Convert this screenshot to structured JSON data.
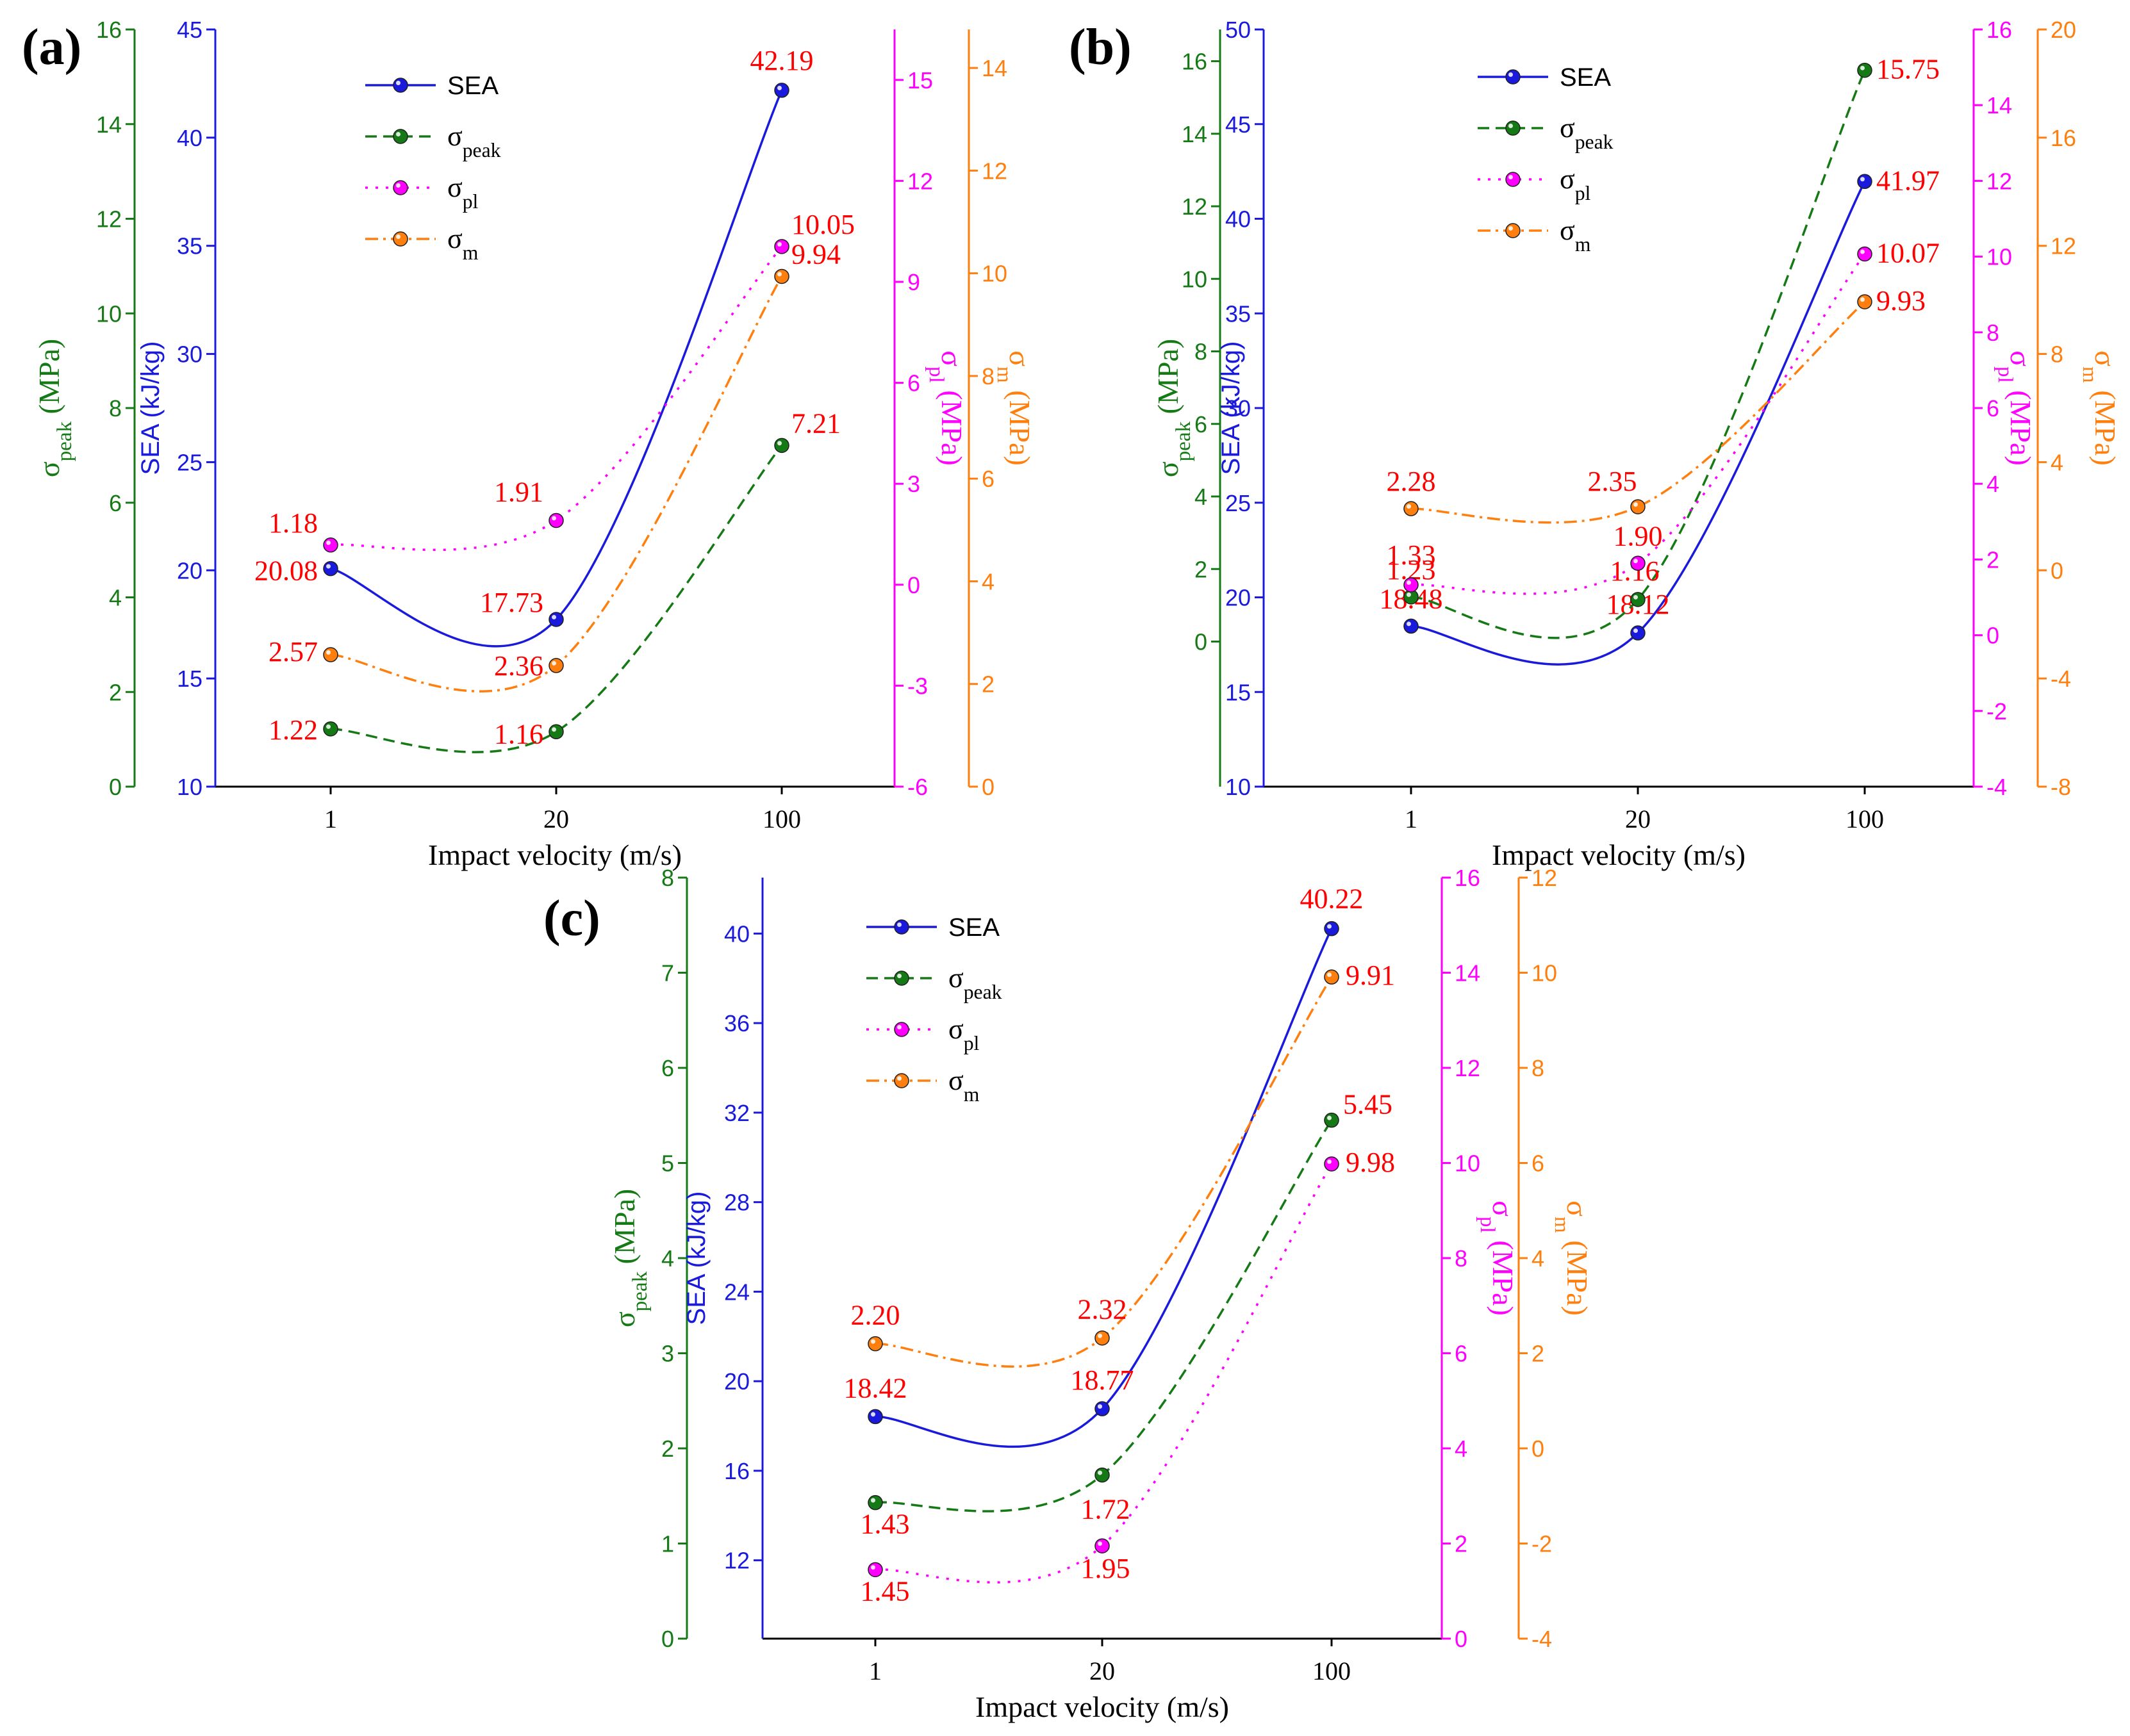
{
  "figure": {
    "panels": [
      "(a)",
      "(b)",
      "(c)"
    ]
  },
  "colors": {
    "sea": "#1a1adc",
    "peak": "#157a15",
    "pl": "#ff00ff",
    "m": "#ff7f0e",
    "label": "#ff0000",
    "axis": "#000000"
  },
  "legend": {
    "sea": "SEA",
    "peak_base": "σ",
    "peak_sub": "peak",
    "pl_base": "σ",
    "pl_sub": "pl",
    "m_base": "σ",
    "m_sub": "m"
  },
  "axis_titles": {
    "x": "Impact velocity (m/s)",
    "peak_base": "σ",
    "peak_sub": "peak",
    "peak_unit": "(MPa)",
    "sea": "SEA (kJ/kg)",
    "pl_base": "σ",
    "pl_sub": "pl",
    "pl_unit": "(MPa)",
    "m_base": "σ",
    "m_sub": "m",
    "m_unit": "(MPa)"
  },
  "chart_data": [
    {
      "panel": "(a)",
      "type": "line",
      "categories": [
        "1",
        "20",
        "100"
      ],
      "xlabel": "Impact velocity (m/s)",
      "series": [
        {
          "key": "sea",
          "name": "SEA",
          "values": [
            20.08,
            17.73,
            42.19
          ],
          "labels": [
            "20.08",
            "17.73",
            "42.19"
          ]
        },
        {
          "key": "peak",
          "name": "σpeak",
          "values": [
            1.22,
            1.16,
            7.21
          ],
          "labels": [
            "1.22",
            "1.16",
            "7.21"
          ]
        },
        {
          "key": "pl",
          "name": "σpl",
          "values": [
            1.18,
            1.91,
            10.05
          ],
          "labels": [
            "1.18",
            "1.91",
            "10.05"
          ]
        },
        {
          "key": "m",
          "name": "σm",
          "values": [
            2.57,
            2.36,
            9.94
          ],
          "labels": [
            "2.57",
            "2.36",
            "9.94"
          ]
        }
      ],
      "axes": {
        "peak": {
          "ylim": [
            0,
            16
          ],
          "ticks": [
            "0",
            "2",
            "4",
            "6",
            "8",
            "10",
            "12",
            "14",
            "16"
          ]
        },
        "sea": {
          "ylim": [
            10,
            45
          ],
          "ticks": [
            "10",
            "15",
            "20",
            "25",
            "30",
            "35",
            "40",
            "45"
          ]
        },
        "pl": {
          "ylim": [
            -6,
            16.5
          ],
          "ticks": [
            "-6",
            "-3",
            "0",
            "3",
            "6",
            "9",
            "12",
            "15"
          ]
        },
        "m": {
          "ylim": [
            0,
            14.75
          ],
          "ticks": [
            "0",
            "2",
            "4",
            "6",
            "8",
            "10",
            "12",
            "14"
          ]
        }
      }
    },
    {
      "panel": "(b)",
      "type": "line",
      "categories": [
        "1",
        "20",
        "100"
      ],
      "xlabel": "Impact velocity (m/s)",
      "series": [
        {
          "key": "sea",
          "name": "SEA",
          "values": [
            18.48,
            18.12,
            41.97
          ],
          "labels": [
            "18.48",
            "18.12",
            "41.97"
          ]
        },
        {
          "key": "peak",
          "name": "σpeak",
          "values": [
            1.23,
            1.16,
            15.75
          ],
          "labels": [
            "1.23",
            "1.16",
            "15.75"
          ]
        },
        {
          "key": "pl",
          "name": "σpl",
          "values": [
            1.33,
            1.9,
            10.07
          ],
          "labels": [
            "1.33",
            "1.90",
            "10.07"
          ]
        },
        {
          "key": "m",
          "name": "σm",
          "values": [
            2.28,
            2.35,
            9.93
          ],
          "labels": [
            "2.28",
            "2.35",
            "9.93"
          ]
        }
      ],
      "axes": {
        "peak": {
          "ylim": [
            -4,
            16.875
          ],
          "ticks": [
            "0",
            "2",
            "4",
            "6",
            "8",
            "10",
            "12",
            "14",
            "16"
          ]
        },
        "sea": {
          "ylim": [
            10,
            50
          ],
          "ticks": [
            "10",
            "15",
            "20",
            "25",
            "30",
            "35",
            "40",
            "45",
            "50"
          ]
        },
        "pl": {
          "ylim": [
            -4,
            16
          ],
          "ticks": [
            "-4",
            "-2",
            "0",
            "2",
            "4",
            "6",
            "8",
            "10",
            "12",
            "14",
            "16"
          ]
        },
        "m": {
          "ylim": [
            -8,
            20
          ],
          "ticks": [
            "-8",
            "-4",
            "0",
            "4",
            "8",
            "12",
            "16",
            "20"
          ]
        }
      }
    },
    {
      "panel": "(c)",
      "type": "line",
      "categories": [
        "1",
        "20",
        "100"
      ],
      "xlabel": "Impact velocity (m/s)",
      "series": [
        {
          "key": "sea",
          "name": "SEA",
          "values": [
            18.42,
            18.77,
            40.22
          ],
          "labels": [
            "18.42",
            "18.77",
            "40.22"
          ]
        },
        {
          "key": "peak",
          "name": "σpeak",
          "values": [
            1.43,
            1.72,
            5.45
          ],
          "labels": [
            "1.43",
            "1.72",
            "5.45"
          ]
        },
        {
          "key": "pl",
          "name": "σpl",
          "values": [
            1.45,
            1.95,
            9.98
          ],
          "labels": [
            "1.45",
            "1.95",
            "9.98"
          ]
        },
        {
          "key": "m",
          "name": "σm",
          "values": [
            2.2,
            2.32,
            9.91
          ],
          "labels": [
            "2.20",
            "2.32",
            "9.91"
          ]
        }
      ],
      "axes": {
        "peak": {
          "ylim": [
            0,
            8
          ],
          "ticks": [
            "0",
            "1",
            "2",
            "3",
            "4",
            "5",
            "6",
            "7",
            "8"
          ]
        },
        "sea": {
          "ylim": [
            8.5,
            42.5
          ],
          "ticks": [
            "12",
            "16",
            "20",
            "24",
            "28",
            "32",
            "36",
            "40"
          ]
        },
        "pl": {
          "ylim": [
            0,
            16
          ],
          "ticks": [
            "0",
            "2",
            "4",
            "6",
            "8",
            "10",
            "12",
            "14",
            "16"
          ]
        },
        "m": {
          "ylim": [
            -4,
            12
          ],
          "ticks": [
            "-4",
            "-2",
            "0",
            "2",
            "4",
            "6",
            "8",
            "10",
            "12"
          ]
        }
      }
    }
  ]
}
